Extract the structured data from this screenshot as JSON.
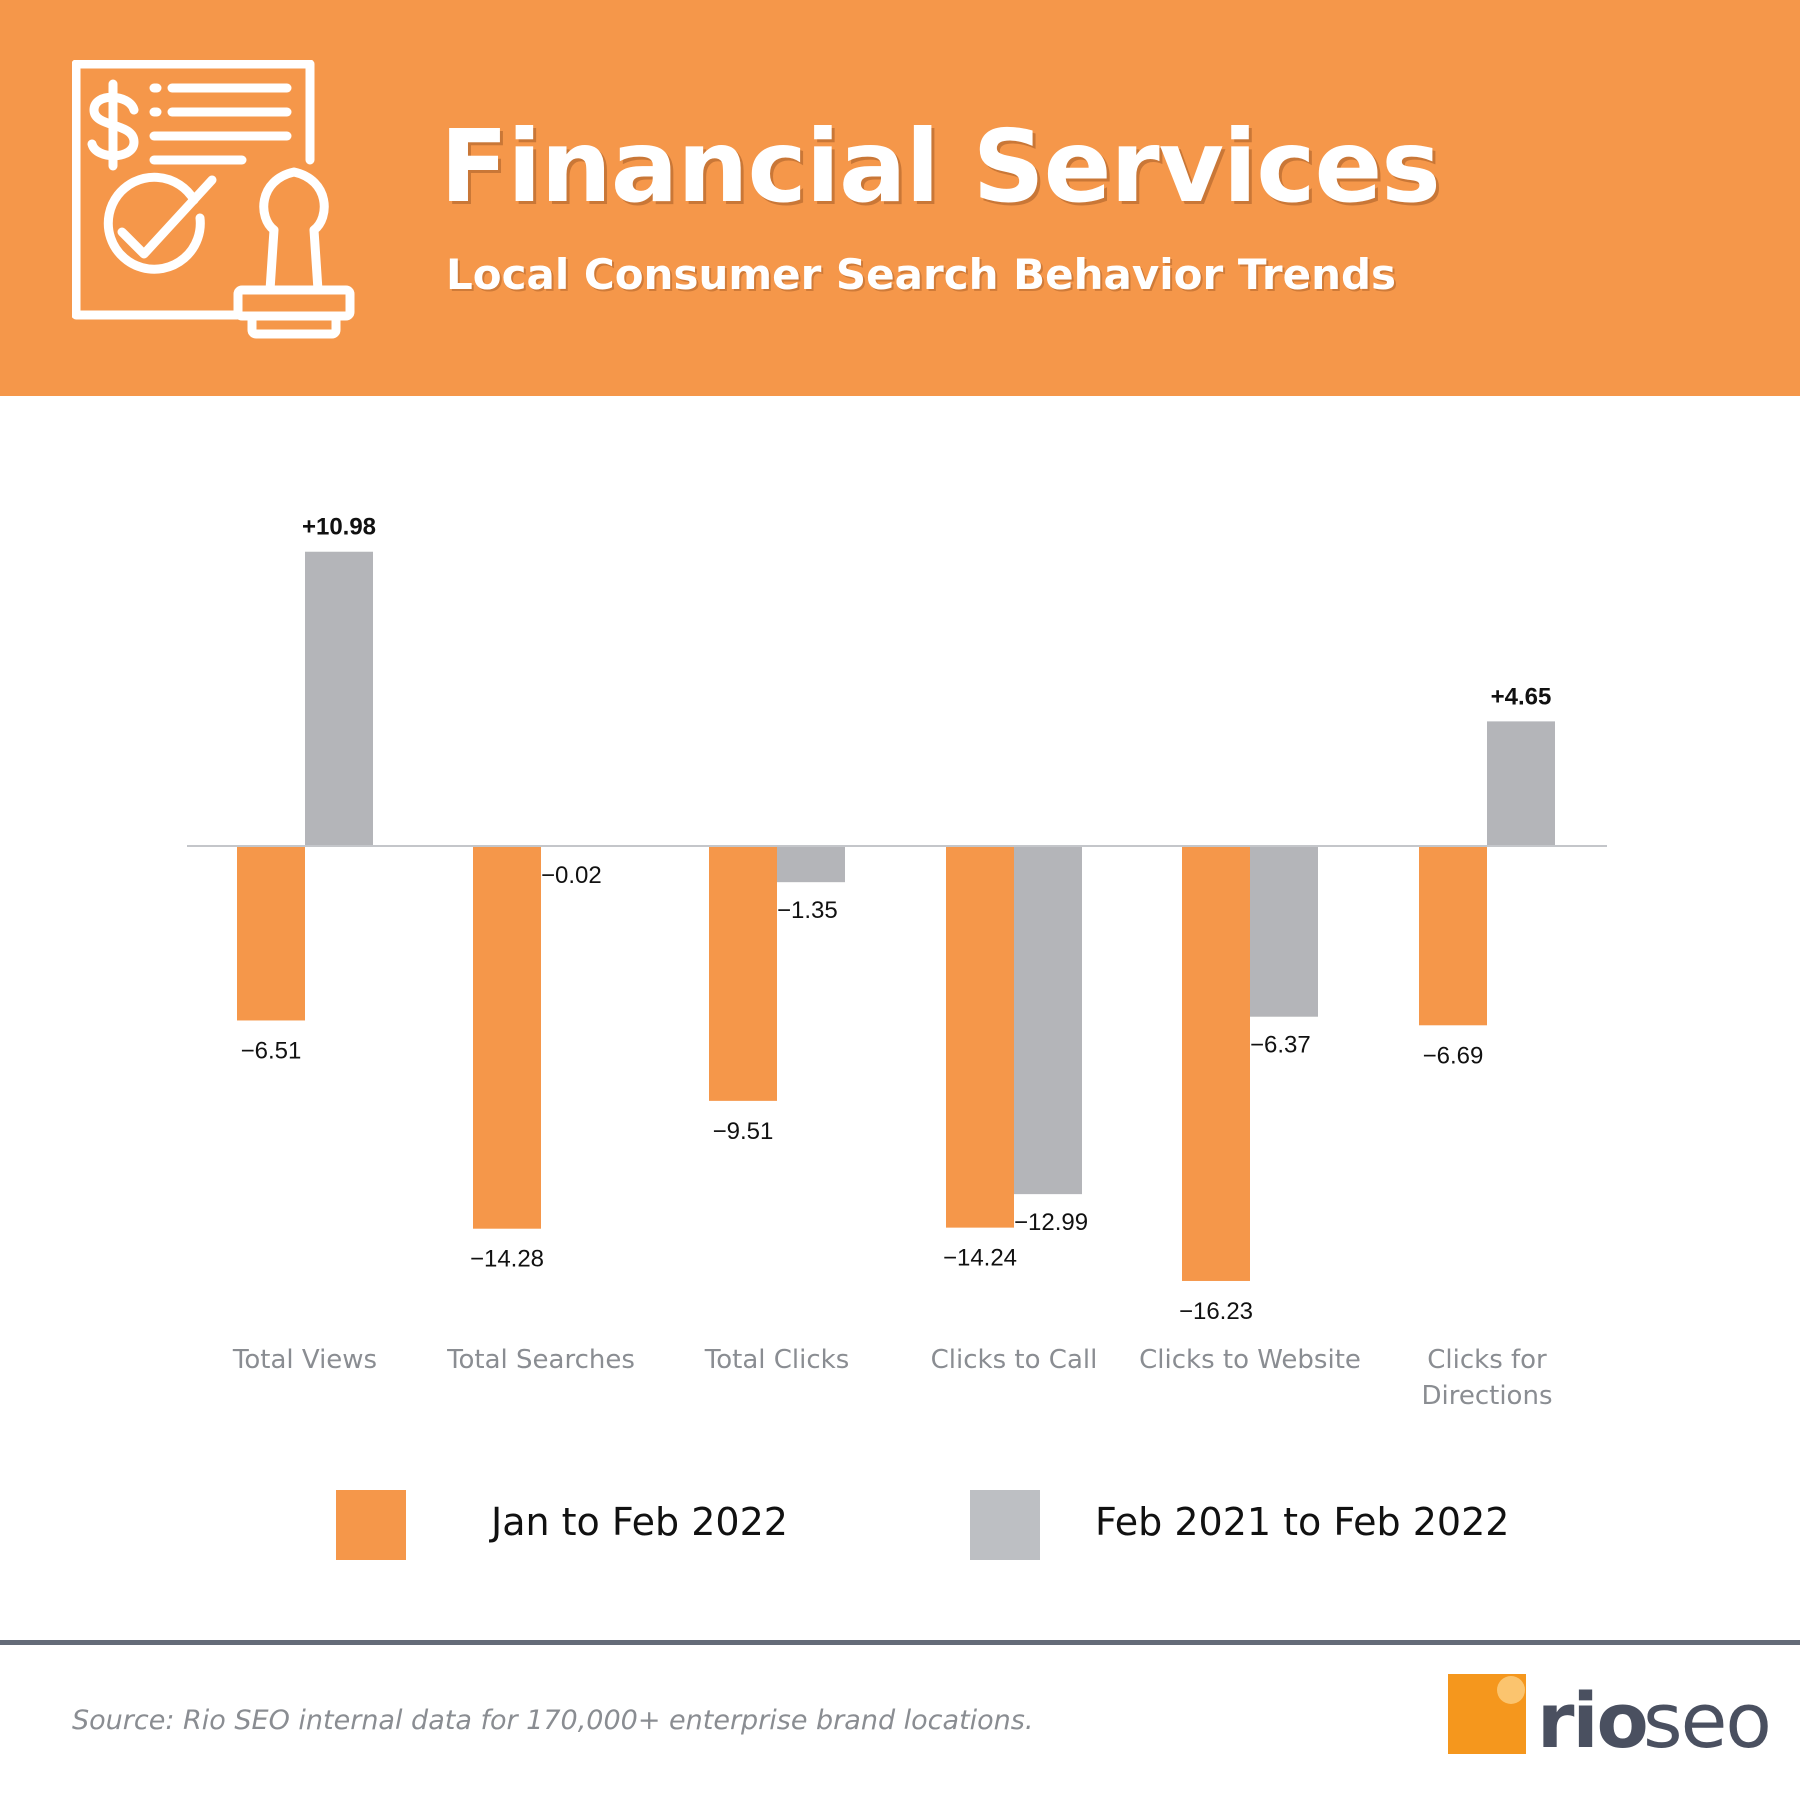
{
  "header": {
    "title": "Financial Services",
    "subtitle": "Local Consumer Search Behavior Trends",
    "icon": "financial-document-stamp-icon"
  },
  "colors": {
    "header_bg": "#F5974A",
    "series_1": "#F5974A",
    "series_2": "#B4B5B9",
    "axis": "#C4C6CA",
    "category_text": "#8A8D92",
    "rule": "#646B78"
  },
  "chart_data": {
    "type": "bar",
    "title": "",
    "xlabel": "",
    "ylabel": "",
    "ylim": [
      -18,
      14
    ],
    "grid": false,
    "legend_position": "bottom",
    "categories": [
      "Total Views",
      "Total Searches",
      "Total Clicks",
      "Clicks to Call",
      "Clicks to Website",
      "Clicks for\nDirections"
    ],
    "series": [
      {
        "name": "Jan to Feb 2022",
        "values": [
          -6.51,
          -14.28,
          -9.51,
          -14.24,
          -16.23,
          -6.69
        ],
        "labels": [
          "−6.51",
          "−14.28",
          "−9.51",
          "−14.24",
          "−16.23",
          "−6.69"
        ]
      },
      {
        "name": "Feb 2021 to Feb 2022",
        "values": [
          10.98,
          -0.02,
          -1.35,
          -12.99,
          -6.37,
          4.65
        ],
        "labels": [
          "+10.98",
          "−0.02",
          "−1.35",
          "−12.99",
          "−6.37",
          "+4.65"
        ]
      }
    ]
  },
  "legend": {
    "items": [
      "Jan to Feb 2022",
      "Feb 2021 to Feb 2022"
    ]
  },
  "footer": {
    "source": "Source: Rio SEO internal data for 170,000+ enterprise brand locations.",
    "logo_part1": "rio",
    "logo_part2": "seo"
  }
}
